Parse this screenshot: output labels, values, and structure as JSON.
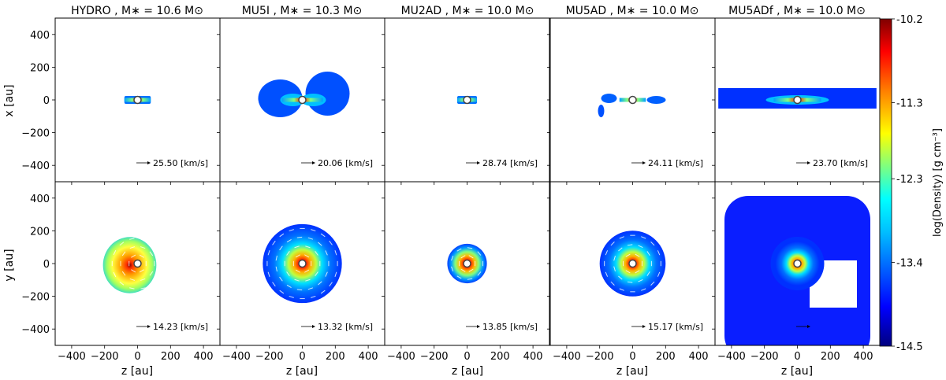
{
  "figure": {
    "panel_titles": [
      "HYDRO , M∗ = 10.6 M⊙",
      "MU5I , M∗ = 10.3 M⊙",
      "MU2AD , M∗ = 10.0 M⊙",
      "MU5AD , M∗ = 10.0 M⊙",
      "MU5ADf , M∗ = 10.0 M⊙"
    ],
    "row_ylabels": [
      "x [au]",
      "y [au]"
    ],
    "xlabel": "z [au]",
    "colorbar": {
      "label": "log(Density) [g cm⁻³]",
      "range": [
        -14.5,
        -10.2
      ],
      "ticks": [
        "-10.2",
        "-11.3",
        "-12.3",
        "-13.4",
        "-14.5"
      ],
      "colormap": [
        "#00007f",
        "#0000ff",
        "#007fff",
        "#00ffff",
        "#7fff7f",
        "#ffff00",
        "#ff7f00",
        "#ff0000",
        "#7f0000"
      ]
    }
  },
  "chart_data": {
    "type": "heatmap",
    "description_rows": [
      "edge-on (x vs z)",
      "face-on (y vs z)"
    ],
    "xlim": [
      -500,
      500
    ],
    "ylim": [
      -500,
      500
    ],
    "xticks": [
      -400,
      -200,
      0,
      200,
      400
    ],
    "yticks": [
      -400,
      -200,
      0,
      200,
      400
    ],
    "xtick_labels": [
      "−400",
      "−200",
      "0",
      "200",
      "400"
    ],
    "ytick_labels": [
      "−400",
      "−200",
      "0",
      "200",
      "400"
    ],
    "velocity_scale_labels": [
      [
        "25.50 [km/s]",
        "20.06 [km/s]",
        "28.74 [km/s]",
        "24.11 [km/s]",
        "23.70 [km/s]"
      ],
      [
        "14.23 [km/s]",
        "13.32 [km/s]",
        "13.85 [km/s]",
        "15.17 [km/s]",
        ""
      ]
    ],
    "models": [
      "HYDRO",
      "MU5I",
      "MU2AD",
      "MU5AD",
      "MU5ADf"
    ],
    "stellar_mass": [
      10.6,
      10.3,
      10.0,
      10.0,
      10.0
    ],
    "disk_extent_face_on_au": [
      180,
      240,
      120,
      200,
      480
    ],
    "edge_on_extent_au": [
      160,
      250,
      120,
      160,
      480
    ]
  }
}
